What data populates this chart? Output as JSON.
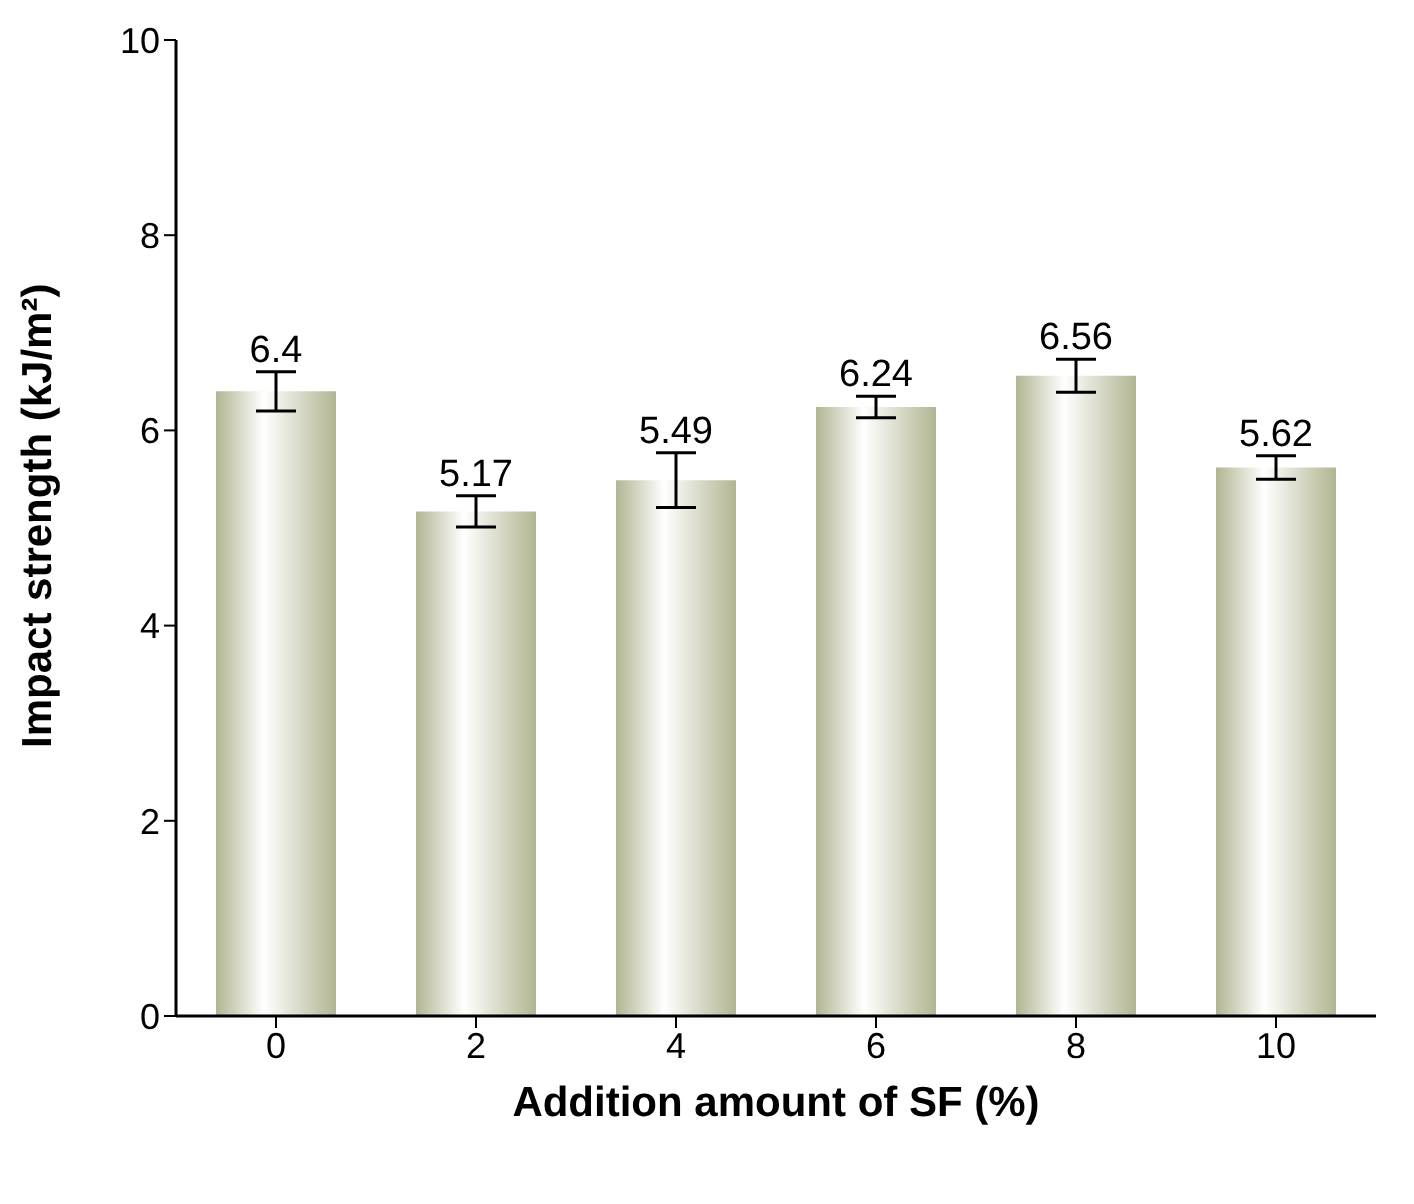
{
  "chart_data": {
    "type": "bar",
    "xlabel": "Addition amount of SF (%)",
    "ylabel": "Impact strength (kJ/m²)",
    "categories": [
      "0",
      "2",
      "4",
      "6",
      "8",
      "10"
    ],
    "values": [
      6.4,
      5.17,
      5.49,
      6.24,
      6.56,
      5.62
    ],
    "errors": [
      0.2,
      0.16,
      0.28,
      0.11,
      0.17,
      0.12
    ],
    "color": "#b2b592",
    "ylim": [
      0,
      10
    ],
    "yticks": [
      0,
      2,
      4,
      6,
      8,
      10
    ],
    "data_labels": true
  }
}
